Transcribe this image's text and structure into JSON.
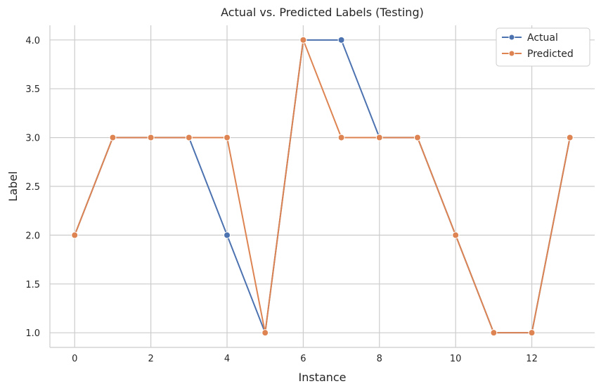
{
  "chart_data": {
    "type": "line",
    "title": "Actual vs. Predicted Labels (Testing)",
    "xlabel": "Instance",
    "ylabel": "Label",
    "x": [
      0,
      1,
      2,
      3,
      4,
      5,
      6,
      7,
      8,
      9,
      10,
      11,
      12,
      13
    ],
    "xlim": [
      -0.65,
      13.65
    ],
    "ylim": [
      0.85,
      4.15
    ],
    "xticks": [
      "0",
      "2",
      "4",
      "6",
      "8",
      "10",
      "12"
    ],
    "yticks": [
      "1.0",
      "1.5",
      "2.0",
      "2.5",
      "3.0",
      "3.5",
      "4.0"
    ],
    "grid": true,
    "legend_position": "top-right",
    "series": [
      {
        "name": "Actual",
        "color": "#4c72b0",
        "values": [
          2,
          3,
          3,
          3,
          2,
          1,
          4,
          4,
          3,
          3,
          2,
          1,
          1,
          3
        ]
      },
      {
        "name": "Predicted",
        "color": "#dd8452",
        "values": [
          2,
          3,
          3,
          3,
          3,
          1,
          4,
          3,
          3,
          3,
          2,
          1,
          1,
          3
        ]
      }
    ]
  }
}
